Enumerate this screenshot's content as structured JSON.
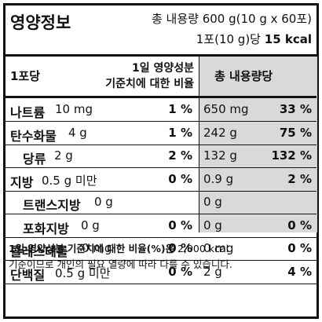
{
  "header": {
    "title": "영양정보",
    "total": "총 내용량 600 g(10 g x 60포)",
    "serving": "1포(10 g)당",
    "kcal": "15 kcal"
  },
  "table": {
    "col_serving": "1포당",
    "col_daily": [
      "1일 영양성분",
      "기준치에 대한 비율"
    ],
    "col_total": "총 내용량당",
    "rows": [
      {
        "name": "나트륨",
        "amount": "10 mg",
        "daily": "1 %",
        "total_amount": "650 mg",
        "total_daily": "33 %"
      },
      {
        "name": "탄수화물",
        "amount": "4 g",
        "daily": "1 %",
        "total_amount": "242 g",
        "total_daily": "75 %"
      },
      {
        "name": "당류",
        "amount": "2 g",
        "daily": "2 %",
        "total_amount": "132 g",
        "total_daily": "132 %",
        "sub": true
      },
      {
        "name": "지방",
        "amount": "0.5 g 미만",
        "daily": "0 %",
        "total_amount": "0.9 g",
        "total_daily": "2 %"
      },
      {
        "name": "트랜스지방",
        "amount": "0 g",
        "total_amount": "0 g",
        "sub": true
      },
      {
        "name": "포화지방",
        "amount": "0 g",
        "daily": "0 %",
        "total_amount": "0 g",
        "total_daily": "0 %",
        "sub": true
      },
      {
        "name": "콜레스테롤",
        "amount": "0 mg",
        "daily": "0 %",
        "total_amount": "0 mg",
        "total_daily": "0 %"
      },
      {
        "name": "단백질",
        "amount": "0.5 g 미만",
        "daily": "0 %",
        "total_amount": "2 g",
        "total_daily": "4 %"
      }
    ]
  },
  "footer": {
    "bold": "1일 영양성분 기준치에 대한 비율(%)은",
    "normal": "2,000 kcal",
    "line2": "기준이므로 개인의 필요 열량에 따라 다를 수 있습니다."
  }
}
